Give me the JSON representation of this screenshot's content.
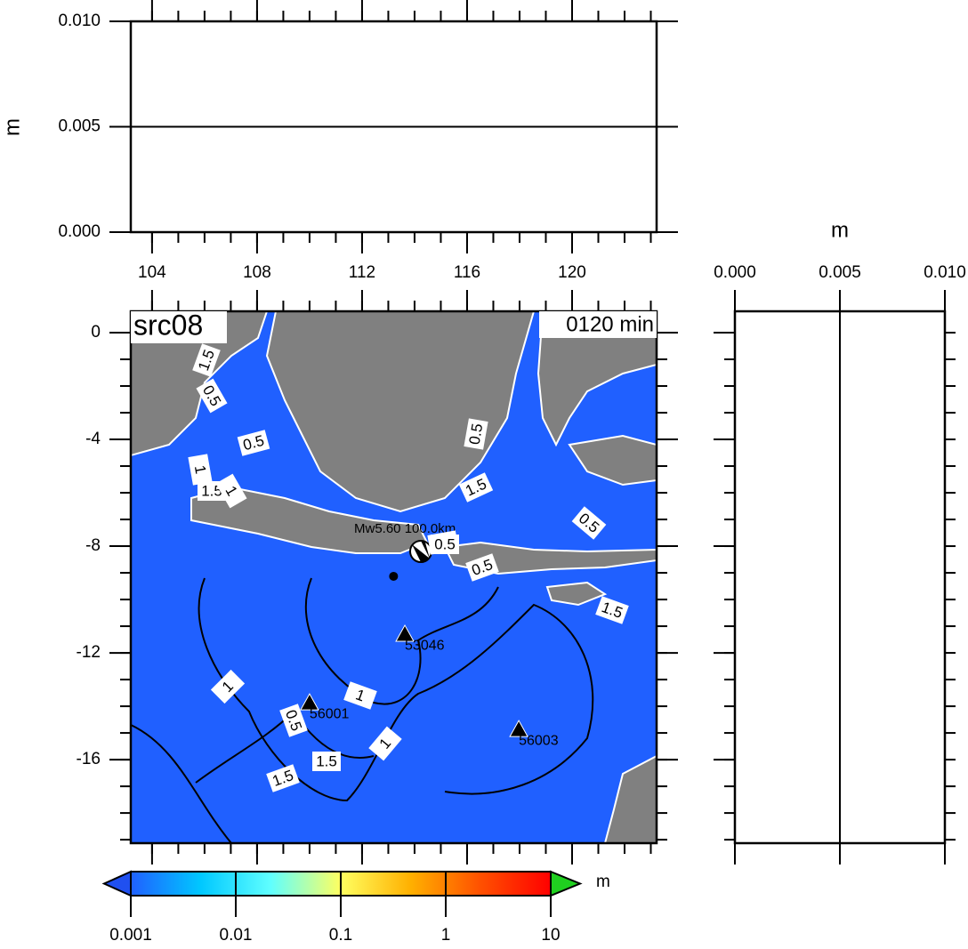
{
  "top_panel": {
    "y_label": "m",
    "ylim": [
      0,
      0.01
    ],
    "yticks": [
      {
        "value": 0,
        "label": "0.000"
      },
      {
        "value": 0.005,
        "label": "0.005"
      },
      {
        "value": 0.01,
        "label": "0.010"
      }
    ]
  },
  "map": {
    "title": "src08",
    "time": "0120 min",
    "xlim": [
      103.19,
      123.22
    ],
    "ylim": [
      -19.13,
      0.8
    ],
    "xticks": [
      104,
      108,
      112,
      116,
      120
    ],
    "yticks": [
      0,
      -4,
      -8,
      -12,
      -16
    ],
    "source_label": "Mw5.60 100.0km",
    "epicenter": {
      "lon": 113.2,
      "lat": -9.13
    },
    "stations": [
      {
        "name": "53046",
        "lon": 113.63,
        "lat": -11.3
      },
      {
        "name": "56001",
        "lon": 110.0,
        "lat": -13.87
      },
      {
        "name": "56003",
        "lon": 117.97,
        "lat": -14.87
      }
    ],
    "contour_labels": [
      "1.5",
      "0.5",
      "0.5",
      "1",
      "1.5",
      "1",
      "0.5",
      "1.5",
      "0.5",
      "1.5",
      "0.5",
      "1.5",
      "1",
      "0.5",
      "1",
      "1",
      "1.5",
      "1.5",
      "0.5"
    ]
  },
  "right_panel": {
    "x_label": "m",
    "xlim": [
      0,
      0.01
    ],
    "xticks": [
      {
        "value": 0,
        "label": "0.000"
      },
      {
        "value": 0.005,
        "label": "0.005"
      },
      {
        "value": 0.01,
        "label": "0.010"
      }
    ]
  },
  "colorbar": {
    "unit": "m",
    "ticks": [
      0.001,
      0.01,
      0.1,
      1,
      10
    ],
    "colors": [
      "#2060ff",
      "#00c8ff",
      "#60ffff",
      "#ffff60",
      "#ffb000",
      "#ff5000",
      "#ff0000"
    ],
    "under_color": "#2050f0",
    "over_color": "#20d020"
  }
}
